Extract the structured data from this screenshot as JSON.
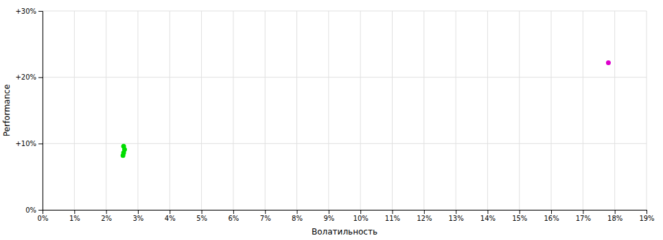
{
  "chart_data": {
    "type": "scatter",
    "xlabel": "Волатильность",
    "ylabel": "Performance",
    "xlim": [
      0.0,
      0.19
    ],
    "ylim": [
      0.0,
      0.3
    ],
    "xticks": [
      {
        "value": 0.0,
        "label": "0%"
      },
      {
        "value": 0.01,
        "label": "1%"
      },
      {
        "value": 0.02,
        "label": "2%"
      },
      {
        "value": 0.03,
        "label": "3%"
      },
      {
        "value": 0.04,
        "label": "4%"
      },
      {
        "value": 0.05,
        "label": "5%"
      },
      {
        "value": 0.06,
        "label": "6%"
      },
      {
        "value": 0.07,
        "label": "7%"
      },
      {
        "value": 0.08,
        "label": "8%"
      },
      {
        "value": 0.09,
        "label": "9%"
      },
      {
        "value": 0.1,
        "label": "10%"
      },
      {
        "value": 0.11,
        "label": "11%"
      },
      {
        "value": 0.12,
        "label": "12%"
      },
      {
        "value": 0.13,
        "label": "13%"
      },
      {
        "value": 0.14,
        "label": "14%"
      },
      {
        "value": 0.15,
        "label": "15%"
      },
      {
        "value": 0.16,
        "label": "16%"
      },
      {
        "value": 0.17,
        "label": "17%"
      },
      {
        "value": 0.18,
        "label": "18%"
      },
      {
        "value": 0.19,
        "label": "19%"
      }
    ],
    "yticks": [
      {
        "value": 0.0,
        "label": "0%"
      },
      {
        "value": 0.1,
        "label": "+10%"
      },
      {
        "value": 0.2,
        "label": "+20%"
      },
      {
        "value": 0.3,
        "label": "+30%"
      }
    ],
    "grid": true,
    "series": [
      {
        "color": "#00dd00",
        "x": [
          0.0255,
          0.0258,
          0.0255,
          0.0253
        ],
        "values": [
          0.096,
          0.091,
          0.086,
          0.082
        ]
      },
      {
        "color": "#dd00cc",
        "x": [
          0.178
        ],
        "values": [
          0.222
        ]
      }
    ]
  }
}
